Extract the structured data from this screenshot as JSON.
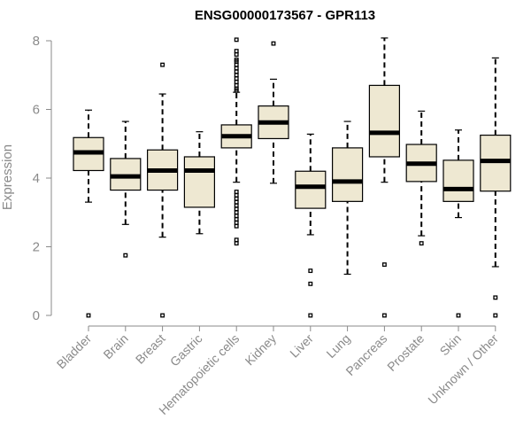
{
  "chart_data": {
    "type": "boxplot",
    "title": "ENSG00000173567 - GPR113",
    "xlabel": "",
    "ylabel": "Expression",
    "ylim": [
      0,
      8.2
    ],
    "yticks": [
      0,
      2,
      4,
      6,
      8
    ],
    "categories": [
      "Bladder",
      "Brain",
      "Breast",
      "Gastric",
      "Hematopoietic cells",
      "Kidney",
      "Liver",
      "Lung",
      "Pancreas",
      "Prostate",
      "Skin",
      "Unknown / Other"
    ],
    "boxes": [
      {
        "name": "Bladder",
        "whisker_low": 3.3,
        "q1": 4.22,
        "median": 4.75,
        "q3": 5.18,
        "whisker_high": 5.98,
        "outliers": [
          0
        ]
      },
      {
        "name": "Brain",
        "whisker_low": 2.65,
        "q1": 3.65,
        "median": 4.05,
        "q3": 4.57,
        "whisker_high": 5.65,
        "outliers": [
          1.75
        ]
      },
      {
        "name": "Breast",
        "whisker_low": 2.28,
        "q1": 3.65,
        "median": 4.22,
        "q3": 4.82,
        "whisker_high": 6.45,
        "outliers": [
          0,
          7.3
        ]
      },
      {
        "name": "Gastric",
        "whisker_low": 2.38,
        "q1": 3.15,
        "median": 4.22,
        "q3": 4.62,
        "whisker_high": 5.35,
        "outliers": []
      },
      {
        "name": "Hematopoietic cells",
        "whisker_low": 3.88,
        "q1": 4.88,
        "median": 5.22,
        "q3": 5.55,
        "whisker_high": 6.5,
        "outliers": [
          2.1,
          2.2,
          2.6,
          2.7,
          2.8,
          2.9,
          3.0,
          3.1,
          3.2,
          3.3,
          3.4,
          3.5,
          3.6,
          6.55,
          6.6,
          6.7,
          6.8,
          6.9,
          7.0,
          7.1,
          7.2,
          7.3,
          7.4,
          7.45,
          7.6,
          7.7,
          8.03
        ]
      },
      {
        "name": "Kidney",
        "whisker_low": 3.85,
        "q1": 5.15,
        "median": 5.62,
        "q3": 6.1,
        "whisker_high": 6.88,
        "outliers": [
          7.92
        ]
      },
      {
        "name": "Liver",
        "whisker_low": 2.35,
        "q1": 3.12,
        "median": 3.75,
        "q3": 4.2,
        "whisker_high": 5.28,
        "outliers": [
          0,
          0.92,
          1.3
        ]
      },
      {
        "name": "Lung",
        "whisker_low": 1.2,
        "q1": 3.32,
        "median": 3.9,
        "q3": 4.88,
        "whisker_high": 5.65,
        "outliers": []
      },
      {
        "name": "Pancreas",
        "whisker_low": 3.88,
        "q1": 4.62,
        "median": 5.32,
        "q3": 6.7,
        "whisker_high": 8.08,
        "outliers": [
          0,
          1.48
        ]
      },
      {
        "name": "Prostate",
        "whisker_low": 2.32,
        "q1": 3.9,
        "median": 4.42,
        "q3": 4.98,
        "whisker_high": 5.95,
        "outliers": [
          2.1
        ]
      },
      {
        "name": "Skin",
        "whisker_low": 2.85,
        "q1": 3.32,
        "median": 3.68,
        "q3": 4.52,
        "whisker_high": 5.4,
        "outliers": [
          0
        ]
      },
      {
        "name": "Unknown / Other",
        "whisker_low": 1.42,
        "q1": 3.62,
        "median": 4.5,
        "q3": 5.25,
        "whisker_high": 7.5,
        "outliers": [
          0,
          0.52
        ]
      }
    ],
    "colors": {
      "box_fill": "#eee8d2",
      "axis_text": "#8a8a8a"
    }
  }
}
